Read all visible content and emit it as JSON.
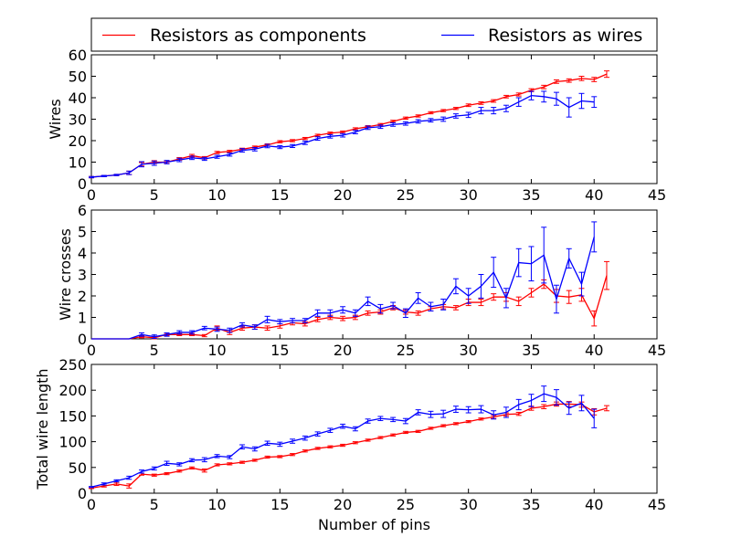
{
  "colors": {
    "components": "#ff0000",
    "wires": "#0000ff"
  },
  "legend": {
    "placement": "top",
    "entries": [
      {
        "label": "Resistors as components",
        "color": "#ff0000"
      },
      {
        "label": "Resistors as wires",
        "color": "#0000ff"
      }
    ]
  },
  "chart_data": [
    {
      "type": "line",
      "title": "",
      "xlabel": "",
      "ylabel": "Wires",
      "xlim": [
        0,
        45
      ],
      "ylim": [
        0,
        60
      ],
      "xticks": [
        0,
        5,
        10,
        15,
        20,
        25,
        30,
        35,
        40,
        45
      ],
      "yticks": [
        0,
        10,
        20,
        30,
        40,
        50,
        60
      ],
      "grid": false,
      "error_bars": true,
      "series": [
        {
          "name": "Resistors as components",
          "color": "#ff0000",
          "x": [
            0,
            1,
            2,
            3,
            4,
            5,
            6,
            7,
            8,
            9,
            10,
            11,
            12,
            13,
            14,
            15,
            16,
            17,
            18,
            19,
            20,
            21,
            22,
            23,
            24,
            25,
            26,
            27,
            28,
            29,
            30,
            31,
            32,
            33,
            34,
            35,
            36,
            37,
            38,
            39,
            40,
            41
          ],
          "y": [
            3,
            3.5,
            4,
            5,
            9,
            10,
            10,
            11.5,
            13,
            12,
            14.5,
            15,
            16,
            17,
            18,
            19.5,
            20,
            21,
            22.5,
            23.5,
            24,
            25.5,
            26.5,
            27.5,
            29,
            30.5,
            31.5,
            33,
            34,
            35,
            36.5,
            37.5,
            38.5,
            40.5,
            41.5,
            43.5,
            45,
            47.5,
            48,
            49,
            48.5,
            51
          ],
          "yerr": [
            0.3,
            0.3,
            0.3,
            0.8,
            0.8,
            0.7,
            0.6,
            0.6,
            0.6,
            0.6,
            0.5,
            0.5,
            0.5,
            0.5,
            0.5,
            0.5,
            0.5,
            0.5,
            0.5,
            0.5,
            0.5,
            0.5,
            0.5,
            0.5,
            0.5,
            0.5,
            0.5,
            0.5,
            0.5,
            0.5,
            0.6,
            0.6,
            0.6,
            0.6,
            0.7,
            0.7,
            0.8,
            0.8,
            0.8,
            1.0,
            1.0,
            1.5
          ]
        },
        {
          "name": "Resistors as wires",
          "color": "#0000ff",
          "x": [
            0,
            1,
            2,
            3,
            4,
            5,
            6,
            7,
            8,
            9,
            10,
            11,
            12,
            13,
            14,
            15,
            16,
            17,
            18,
            19,
            20,
            21,
            22,
            23,
            24,
            25,
            26,
            27,
            28,
            29,
            30,
            31,
            32,
            33,
            34,
            35,
            36,
            37,
            38,
            39,
            40
          ],
          "y": [
            3,
            3.5,
            4,
            5,
            9,
            9.5,
            10,
            11,
            12,
            11.5,
            12.5,
            13.5,
            15.5,
            16,
            17.5,
            17,
            17.5,
            19,
            21,
            22,
            22.5,
            24,
            26,
            26.5,
            27.5,
            28,
            29,
            29.5,
            30,
            31.5,
            32,
            34,
            34,
            35,
            38,
            41,
            40.5,
            39.5,
            35.5,
            38.5,
            38
          ],
          "yerr": [
            0.3,
            0.3,
            0.3,
            0.8,
            1.2,
            1.0,
            0.8,
            0.8,
            0.8,
            0.7,
            0.7,
            0.7,
            0.8,
            0.8,
            0.8,
            0.7,
            0.7,
            0.8,
            0.8,
            0.8,
            0.8,
            0.8,
            0.8,
            0.8,
            0.8,
            0.8,
            0.8,
            0.8,
            1.0,
            1.0,
            1.2,
            1.5,
            1.5,
            1.5,
            2.0,
            2.0,
            2.5,
            3.0,
            4.5,
            3.5,
            2.5
          ]
        }
      ]
    },
    {
      "type": "line",
      "title": "",
      "xlabel": "",
      "ylabel": "Wire crosses",
      "xlim": [
        0,
        45
      ],
      "ylim": [
        0,
        6
      ],
      "xticks": [
        0,
        5,
        10,
        15,
        20,
        25,
        30,
        35,
        40,
        45
      ],
      "yticks": [
        0,
        1,
        2,
        3,
        4,
        5,
        6
      ],
      "grid": false,
      "error_bars": true,
      "series": [
        {
          "name": "Resistors as components",
          "color": "#ff0000",
          "x": [
            0,
            1,
            2,
            3,
            4,
            5,
            6,
            7,
            8,
            9,
            10,
            11,
            12,
            13,
            14,
            15,
            16,
            17,
            18,
            19,
            20,
            21,
            22,
            23,
            24,
            25,
            26,
            27,
            28,
            29,
            30,
            31,
            32,
            33,
            34,
            35,
            36,
            37,
            38,
            39,
            40,
            41
          ],
          "y": [
            0,
            0,
            0,
            0,
            0.1,
            0.05,
            0.2,
            0.2,
            0.2,
            0.15,
            0.5,
            0.3,
            0.5,
            0.55,
            0.5,
            0.6,
            0.75,
            0.7,
            0.9,
            1.0,
            0.95,
            1.0,
            1.2,
            1.25,
            1.45,
            1.25,
            1.2,
            1.4,
            1.5,
            1.45,
            1.7,
            1.7,
            1.95,
            1.95,
            1.75,
            2.15,
            2.55,
            2.0,
            1.95,
            2.05,
            0.95,
            2.95
          ],
          "yerr": [
            0,
            0,
            0,
            0,
            0.05,
            0.05,
            0.05,
            0.05,
            0.05,
            0.05,
            0.1,
            0.1,
            0.1,
            0.1,
            0.1,
            0.1,
            0.1,
            0.1,
            0.1,
            0.1,
            0.1,
            0.1,
            0.1,
            0.1,
            0.1,
            0.1,
            0.1,
            0.1,
            0.1,
            0.1,
            0.15,
            0.15,
            0.15,
            0.2,
            0.2,
            0.2,
            0.2,
            0.3,
            0.3,
            0.3,
            0.35,
            0.65
          ]
        },
        {
          "name": "Resistors as wires",
          "color": "#0000ff",
          "x": [
            0,
            1,
            2,
            3,
            4,
            5,
            6,
            7,
            8,
            9,
            10,
            11,
            12,
            13,
            14,
            15,
            16,
            17,
            18,
            19,
            20,
            21,
            22,
            23,
            24,
            25,
            26,
            27,
            28,
            29,
            30,
            31,
            32,
            33,
            34,
            35,
            36,
            37,
            38,
            39,
            40
          ],
          "y": [
            0,
            0,
            0,
            0,
            0.2,
            0.1,
            0.2,
            0.3,
            0.3,
            0.5,
            0.45,
            0.4,
            0.65,
            0.55,
            0.9,
            0.8,
            0.85,
            0.85,
            1.2,
            1.2,
            1.35,
            1.2,
            1.75,
            1.4,
            1.55,
            1.2,
            1.9,
            1.5,
            1.6,
            2.45,
            2.0,
            2.45,
            3.1,
            1.9,
            3.55,
            3.5,
            3.9,
            1.85,
            3.75,
            2.55,
            4.75
          ],
          "yerr": [
            0,
            0,
            0,
            0,
            0.08,
            0.08,
            0.08,
            0.08,
            0.08,
            0.08,
            0.1,
            0.1,
            0.1,
            0.1,
            0.15,
            0.1,
            0.1,
            0.1,
            0.15,
            0.15,
            0.15,
            0.15,
            0.2,
            0.2,
            0.15,
            0.2,
            0.25,
            0.2,
            0.25,
            0.35,
            0.35,
            0.55,
            0.7,
            0.45,
            0.65,
            0.8,
            1.3,
            0.65,
            0.45,
            0.55,
            0.7
          ]
        }
      ]
    },
    {
      "type": "line",
      "title": "",
      "xlabel": "Number of pins",
      "ylabel": "Total wire length",
      "xlim": [
        0,
        45
      ],
      "ylim": [
        0,
        250
      ],
      "xticks": [
        0,
        5,
        10,
        15,
        20,
        25,
        30,
        35,
        40,
        45
      ],
      "yticks": [
        0,
        50,
        100,
        150,
        200,
        250
      ],
      "grid": false,
      "error_bars": true,
      "series": [
        {
          "name": "Resistors as components",
          "color": "#ff0000",
          "x": [
            0,
            1,
            2,
            3,
            4,
            5,
            6,
            7,
            8,
            9,
            10,
            11,
            12,
            13,
            14,
            15,
            16,
            17,
            18,
            19,
            20,
            21,
            22,
            23,
            24,
            25,
            26,
            27,
            28,
            29,
            30,
            31,
            32,
            33,
            34,
            35,
            36,
            37,
            38,
            39,
            40,
            41
          ],
          "y": [
            10,
            14,
            18,
            14,
            37,
            35,
            38,
            43,
            49,
            44,
            55,
            57,
            60,
            64,
            70,
            71,
            75,
            82,
            87,
            90,
            93,
            98,
            103,
            108,
            113,
            118,
            120,
            126,
            131,
            135,
            139,
            144,
            148,
            153,
            154,
            165,
            168,
            173,
            173,
            172,
            158,
            165
          ],
          "yerr": [
            1,
            2,
            3,
            4,
            2,
            2,
            2,
            2,
            2,
            3,
            2,
            2,
            2,
            2,
            2,
            2,
            2,
            2,
            2,
            2,
            2,
            2,
            2,
            2,
            2,
            2,
            2,
            2,
            2,
            2,
            2,
            2,
            3,
            3,
            3,
            4,
            4,
            4,
            5,
            5,
            6,
            5
          ]
        },
        {
          "name": "Resistors as wires",
          "color": "#0000ff",
          "x": [
            0,
            1,
            2,
            3,
            4,
            5,
            6,
            7,
            8,
            9,
            10,
            11,
            12,
            13,
            14,
            15,
            16,
            17,
            18,
            19,
            20,
            21,
            22,
            23,
            24,
            25,
            26,
            27,
            28,
            29,
            30,
            31,
            32,
            33,
            34,
            35,
            36,
            37,
            38,
            39,
            40
          ],
          "y": [
            12,
            18,
            24,
            30,
            42,
            48,
            58,
            56,
            64,
            65,
            72,
            70,
            90,
            86,
            97,
            95,
            101,
            107,
            115,
            122,
            130,
            125,
            140,
            145,
            143,
            140,
            157,
            153,
            154,
            163,
            162,
            163,
            152,
            157,
            172,
            180,
            193,
            186,
            165,
            175,
            145
          ],
          "yerr": [
            1,
            2,
            2,
            3,
            3,
            3,
            4,
            3,
            3,
            4,
            3,
            3,
            4,
            4,
            4,
            4,
            4,
            4,
            4,
            4,
            4,
            4,
            4,
            4,
            4,
            5,
            5,
            6,
            7,
            6,
            6,
            7,
            8,
            10,
            10,
            12,
            15,
            15,
            12,
            15,
            18
          ]
        }
      ]
    }
  ]
}
